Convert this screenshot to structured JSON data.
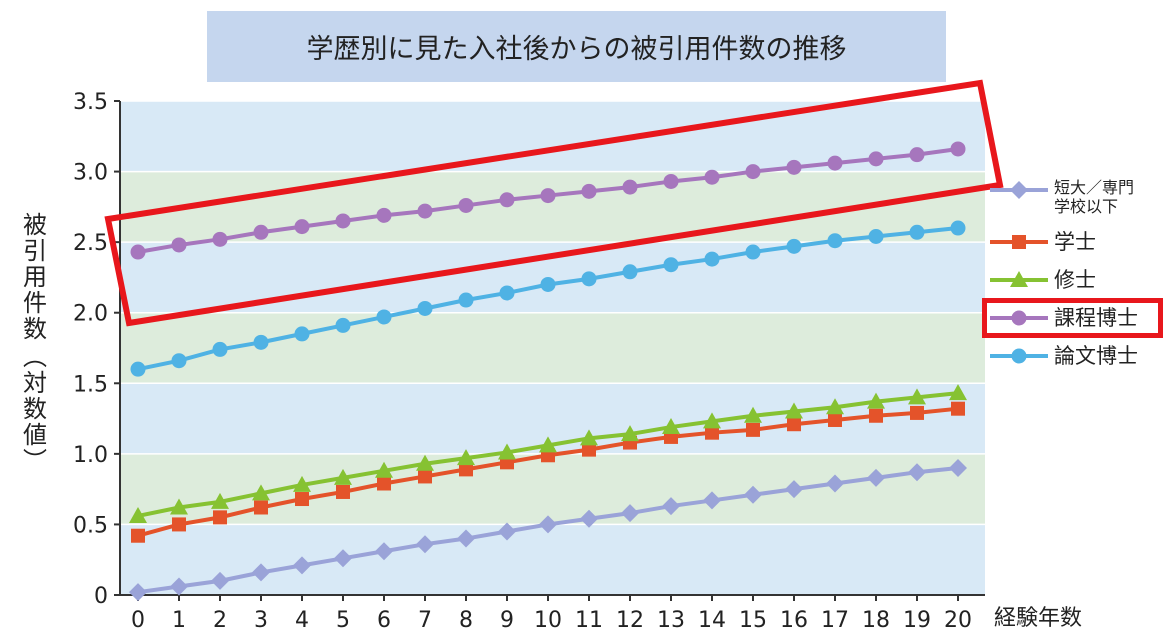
{
  "chart_data": {
    "type": "line",
    "title": "学歴別に見た入社後からの被引用件数の推移",
    "ylabel_main": "被引用件数",
    "ylabel_sub": "(対数値)",
    "xlabel": "経験年数",
    "ylim": [
      0,
      3.5
    ],
    "yticks": [
      "0",
      "0.5",
      "1.0",
      "1.5",
      "2.0",
      "2.5",
      "3.0",
      "3.5"
    ],
    "x": [
      0,
      1,
      2,
      3,
      4,
      5,
      6,
      7,
      8,
      9,
      10,
      11,
      12,
      13,
      14,
      15,
      16,
      17,
      18,
      19,
      20
    ],
    "grid": true,
    "legend_position": "right",
    "series": [
      {
        "name": "短大／専門学校以下",
        "name_line1": "短大／専門",
        "name_line2": "学校以下",
        "color": "#9aa3d8",
        "marker": "diamond",
        "values": [
          0.02,
          0.06,
          0.1,
          0.16,
          0.21,
          0.26,
          0.31,
          0.36,
          0.4,
          0.45,
          0.5,
          0.54,
          0.58,
          0.63,
          0.67,
          0.71,
          0.75,
          0.79,
          0.83,
          0.87,
          0.9
        ]
      },
      {
        "name": "学士",
        "color": "#e4532a",
        "marker": "square",
        "values": [
          0.42,
          0.5,
          0.55,
          0.62,
          0.68,
          0.73,
          0.79,
          0.84,
          0.89,
          0.94,
          0.99,
          1.03,
          1.08,
          1.12,
          1.15,
          1.17,
          1.21,
          1.24,
          1.27,
          1.29,
          1.32
        ]
      },
      {
        "name": "修士",
        "color": "#86c232",
        "marker": "triangle",
        "values": [
          0.56,
          0.62,
          0.66,
          0.72,
          0.78,
          0.83,
          0.88,
          0.93,
          0.97,
          1.01,
          1.06,
          1.11,
          1.14,
          1.19,
          1.23,
          1.27,
          1.3,
          1.33,
          1.37,
          1.4,
          1.43
        ]
      },
      {
        "name": "課程博士",
        "color": "#a676bd",
        "marker": "circle",
        "values": [
          2.43,
          2.48,
          2.52,
          2.57,
          2.61,
          2.65,
          2.69,
          2.72,
          2.76,
          2.8,
          2.83,
          2.86,
          2.89,
          2.93,
          2.96,
          3.0,
          3.03,
          3.06,
          3.09,
          3.12,
          3.16
        ]
      },
      {
        "name": "論文博士",
        "color": "#4fb2e4",
        "marker": "circle",
        "values": [
          1.6,
          1.66,
          1.74,
          1.79,
          1.85,
          1.91,
          1.97,
          2.03,
          2.09,
          2.14,
          2.2,
          2.24,
          2.29,
          2.34,
          2.38,
          2.43,
          2.47,
          2.51,
          2.54,
          2.57,
          2.6
        ]
      }
    ],
    "annotations": [
      "red box highlighting 課程博士 series",
      "red box around 課程博士 legend entry"
    ]
  }
}
